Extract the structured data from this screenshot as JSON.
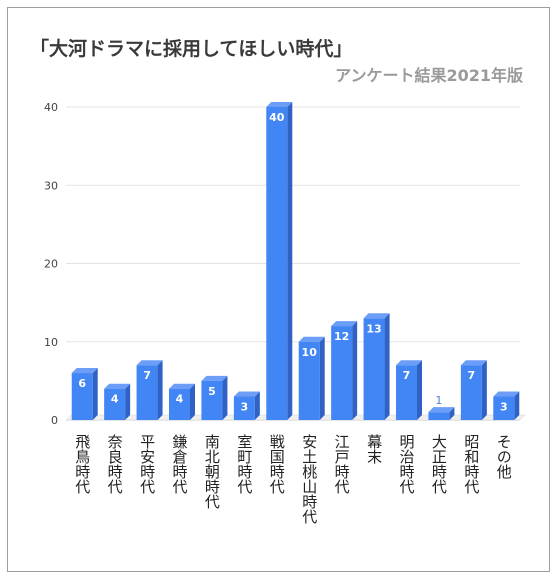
{
  "chart_data": {
    "type": "bar",
    "title": "「大河ドラマに採用してほしい時代」",
    "subtitle": "アンケート結果2021年版",
    "xlabel": "",
    "ylabel": "",
    "ylim": [
      0,
      40
    ],
    "yticks": [
      0,
      10,
      20,
      30,
      40
    ],
    "grid": true,
    "legend": "none",
    "categories": [
      "飛鳥時代",
      "奈良時代",
      "平安時代",
      "鎌倉時代",
      "南北朝時代",
      "室町時代",
      "戦国時代",
      "安土桃山時代",
      "江戸時代",
      "幕末",
      "明治時代",
      "大正時代",
      "昭和時代",
      "その他"
    ],
    "values": [
      6,
      4,
      7,
      4,
      5,
      3,
      40,
      10,
      12,
      13,
      7,
      1,
      7,
      3
    ],
    "bar_color": "#4285f4",
    "bar_side_color": "#2f62c4",
    "bar_top_color": "#6d9ef7"
  }
}
